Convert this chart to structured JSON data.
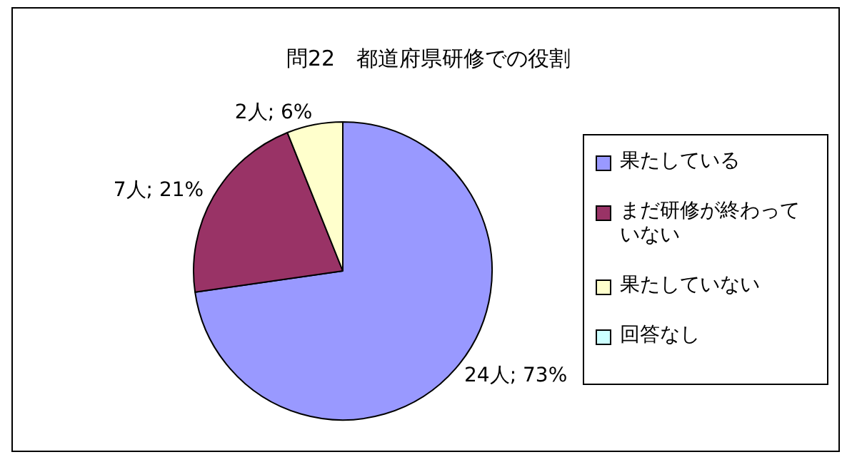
{
  "chart_data": {
    "type": "pie",
    "title": "問22　都道府県研修での役割",
    "categories": [
      "果たしている",
      "まだ研修が終わっていない",
      "果たしていない",
      "回答なし"
    ],
    "values": [
      24,
      7,
      2,
      0
    ],
    "colors": [
      "#9999ff",
      "#993366",
      "#ffffcc",
      "#ccffff"
    ],
    "value_labels": [
      "24人; 73%",
      "7人; 21%",
      "2人; 6%",
      null
    ],
    "legend": "right"
  }
}
